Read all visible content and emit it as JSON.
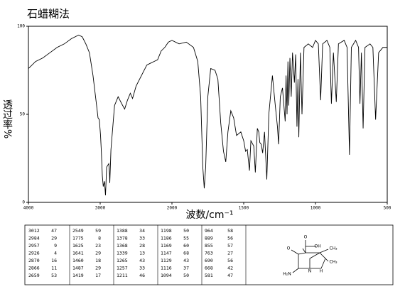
{
  "chart_data": {
    "type": "line",
    "title": "石蜡糊法",
    "x_label": "波数/cm⁻¹",
    "y_label": "透过率%",
    "xlim": [
      4000,
      500
    ],
    "xticks": [
      4000,
      3000,
      2000,
      1500,
      1000,
      500
    ],
    "ylim": [
      0,
      100
    ],
    "yticks": [
      0,
      50,
      100
    ],
    "x": [
      4000,
      3900,
      3800,
      3700,
      3600,
      3500,
      3400,
      3300,
      3250,
      3200,
      3150,
      3100,
      3050,
      3030,
      3012,
      2995,
      2984,
      2970,
      2957,
      2940,
      2926,
      2910,
      2880,
      2870,
      2866,
      2850,
      2800,
      2750,
      2700,
      2659,
      2620,
      2580,
      2549,
      2500,
      2400,
      2350,
      2300,
      2250,
      2200,
      2150,
      2100,
      2050,
      2000,
      1950,
      1900,
      1850,
      1820,
      1800,
      1785,
      1775,
      1765,
      1750,
      1730,
      1700,
      1680,
      1660,
      1641,
      1625,
      1610,
      1590,
      1570,
      1550,
      1520,
      1500,
      1487,
      1475,
      1460,
      1450,
      1430,
      1419,
      1405,
      1395,
      1388,
      1378,
      1368,
      1355,
      1339,
      1325,
      1300,
      1280,
      1265,
      1257,
      1245,
      1230,
      1211,
      1205,
      1198,
      1192,
      1186,
      1178,
      1169,
      1160,
      1147,
      1138,
      1129,
      1122,
      1116,
      1105,
      1094,
      1080,
      1050,
      1020,
      1000,
      980,
      964,
      950,
      920,
      900,
      889,
      875,
      855,
      840,
      800,
      780,
      763,
      750,
      720,
      700,
      690,
      680,
      668,
      655,
      620,
      600,
      581,
      560,
      530,
      500
    ],
    "series": [
      {
        "color": "#000000",
        "values": [
          76,
          80,
          82,
          85,
          88,
          90,
          93,
          95,
          94,
          90,
          85,
          72,
          55,
          48,
          47,
          38,
          29,
          15,
          9,
          12,
          4,
          20,
          22,
          16,
          11,
          30,
          55,
          60,
          56,
          53,
          58,
          62,
          59,
          66,
          74,
          78,
          79,
          80,
          81,
          86,
          88,
          91,
          92,
          90,
          91,
          88,
          80,
          60,
          20,
          8,
          20,
          60,
          76,
          75,
          70,
          45,
          29,
          23,
          40,
          52,
          48,
          38,
          40,
          35,
          29,
          30,
          18,
          35,
          32,
          17,
          42,
          40,
          34,
          33,
          28,
          40,
          13,
          50,
          72,
          55,
          43,
          33,
          60,
          65,
          46,
          72,
          50,
          80,
          55,
          82,
          60,
          85,
          68,
          84,
          43,
          70,
          37,
          85,
          50,
          88,
          90,
          88,
          92,
          90,
          58,
          90,
          92,
          88,
          56,
          85,
          57,
          90,
          92,
          88,
          27,
          88,
          92,
          88,
          56,
          85,
          42,
          88,
          90,
          88,
          47,
          85,
          88,
          88
        ]
      }
    ],
    "peak_table": [
      [
        [
          3012,
          47
        ],
        [
          2984,
          29
        ],
        [
          2957,
          9
        ],
        [
          2926,
          4
        ],
        [
          2870,
          16
        ],
        [
          2866,
          11
        ],
        [
          2659,
          53
        ]
      ],
      [
        [
          2549,
          59
        ],
        [
          1775,
          8
        ],
        [
          1625,
          23
        ],
        [
          1641,
          29
        ],
        [
          1460,
          18
        ],
        [
          1487,
          29
        ],
        [
          1419,
          17
        ]
      ],
      [
        [
          1388,
          34
        ],
        [
          1378,
          33
        ],
        [
          1368,
          28
        ],
        [
          1339,
          13
        ],
        [
          1265,
          43
        ],
        [
          1257,
          33
        ],
        [
          1211,
          46
        ]
      ],
      [
        [
          1198,
          50
        ],
        [
          1186,
          55
        ],
        [
          1169,
          60
        ],
        [
          1147,
          68
        ],
        [
          1129,
          43
        ],
        [
          1116,
          37
        ],
        [
          1094,
          50
        ]
      ],
      [
        [
          964,
          58
        ],
        [
          889,
          56
        ],
        [
          855,
          57
        ],
        [
          763,
          27
        ],
        [
          690,
          56
        ],
        [
          668,
          42
        ],
        [
          581,
          47
        ]
      ]
    ],
    "structure_labels": [
      "O",
      "OH",
      "O",
      "CH₃",
      "CH₃",
      "H₂N",
      "H",
      "N"
    ]
  }
}
